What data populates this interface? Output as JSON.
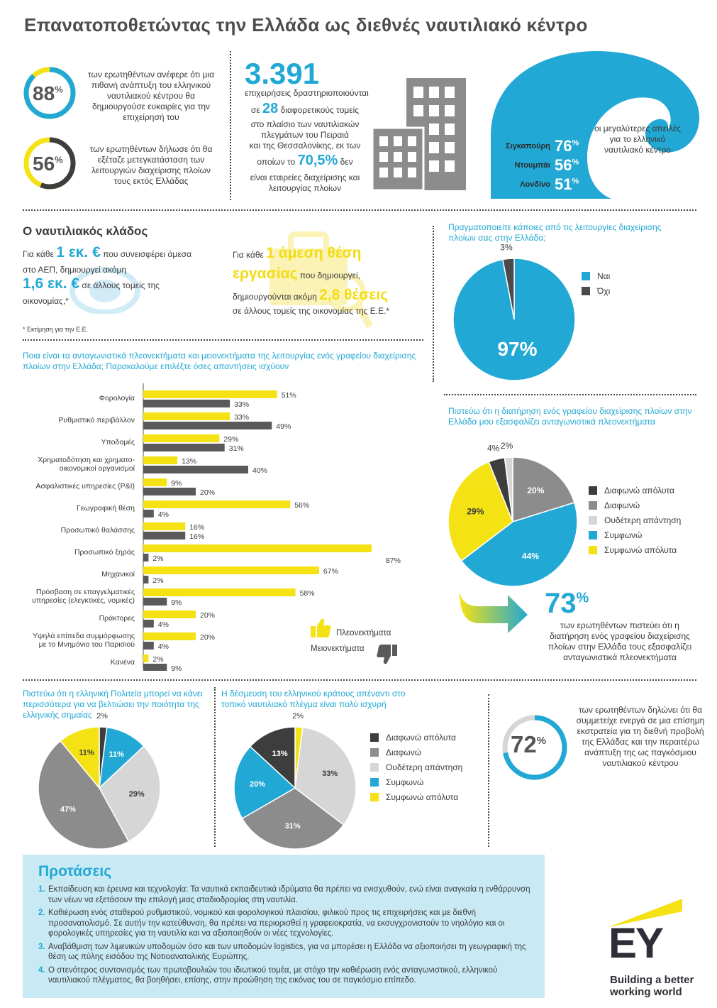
{
  "title": "Επανατοποθετώντας την Ελλάδα ως διεθνές ναυτιλιακό κέντρο",
  "stats": {
    "p88": {
      "value": "88",
      "pct": "%",
      "fraction": 0.88,
      "text": "των ερωτηθέντων ανέφερε ότι μια πιθανή ανάπτυξη του ελληνικού ναυτιλιακού κέντρου θα δημιουργούσε ευκαιρίες για την επιχείρησή του"
    },
    "p56": {
      "value": "56",
      "pct": "%",
      "fraction": 0.56,
      "text": "των ερωτηθέντων δήλωσε ότι θα εξέταζε μετεγκατάσταση των λειτουργιών διαχείρισης πλοίων τους εκτός Ελλάδας"
    },
    "companies": {
      "number": "3.391",
      "line1": "επιχειρήσεις δραστηριοποιούνται",
      "pre28": "σε",
      "n28": "28",
      "post28": "διαφορετικούς τομείς",
      "line3": "στο πλαίσιο των ναυτιλιακών",
      "line4": "πλεγμάτων του Πειραιά",
      "line5": "και της Θεσσαλονίκης, εκ των",
      "pre70": "οποίων το",
      "n70": "70,5%",
      "post70": "δεν",
      "line7": "είναι εταιρείες διαχείρισης και",
      "line8": "λειτουργίας πλοίων"
    },
    "threats": {
      "text": "οι μεγαλύτερες απειλές για το ελληνικό ναυτιλιακό κέντρο",
      "items": [
        {
          "name": "Σιγκαπούρη",
          "value": "76",
          "pct": "%"
        },
        {
          "name": "Ντουμπάι",
          "value": "56",
          "pct": "%"
        },
        {
          "name": "Λονδίνο",
          "value": "51",
          "pct": "%"
        }
      ]
    },
    "p72": {
      "value": "72",
      "pct": "%",
      "fraction": 0.72,
      "text": "των ερωτηθέντων δηλώνει ότι θα συμμετείχε ενεργά σε μια επίσημη εκστρατεία για τη διεθνή προβολή της Ελλάδας και την περαιτέρω ανάπτυξη της ως παγκόσμιου ναυτιλιακού κέντρου"
    },
    "p73": {
      "value": "73",
      "pct": "%",
      "text": "των ερωτηθέντων πιστεύει ότι η διατήρηση ενός γραφείου διαχείρισης πλοίων στην Ελλάδα τους εξασφαλίζει ανταγωνιστικά πλεονεκτήματα"
    }
  },
  "sector": {
    "heading": "Ο ναυτιλιακός κλάδος",
    "eur_pre": "Για κάθε",
    "eur_big": "1 εκ. €",
    "eur_post1": "που συνεισφέρει άμεσα",
    "eur_post2": "στο ΑΕΠ, δημιουργεί ακόμη",
    "eur_big2": "1,6 εκ. €",
    "eur_post3": "σε άλλους τομείς της",
    "eur_post4": "οικονομίας,*",
    "job_pre": "Για κάθε",
    "job_big1": "1 άμεση θέση",
    "job_big2": "εργασίας",
    "job_post1": "που δημιουργεί,",
    "job_post2": "δημιουργούνται ακόμη",
    "job_big3": "2,8 θέσεις",
    "job_post3": "σε άλλους τομείς της οικονομίας της Ε.Ε.*",
    "footnote": "* Εκτίμηση για την Ε.Ε."
  },
  "colors": {
    "cyan": "#22a8d4",
    "yellow": "#f5e214",
    "dark": "#3d3d3d",
    "mid": "#8c8c8c",
    "light": "#d6d6d6"
  },
  "chart_data": [
    {
      "id": "pie-operations",
      "type": "pie",
      "title": "Πραγματοποιείτε κάποιες από τις λειτουργίες διαχείρισης πλοίων σας στην Ελλάδα;",
      "slices": [
        {
          "name": "Ναι",
          "value": 97,
          "label": "97%",
          "color": "#22a8d4"
        },
        {
          "name": "Όχι",
          "value": 3,
          "label": "3%",
          "color": "#4a4a4a"
        }
      ]
    },
    {
      "id": "bar-advantages",
      "type": "bar",
      "title": "Ποια είναι τα ανταγωνιστικά πλεονεκτήματα και μειονεκτήματα της λειτουργίας ενός γραφείου διαχείρισης πλοίων στην Ελλάδα; Παρακαλούμε επιλέξτε όσες απαντήσεις ισχύουν",
      "categories": [
        "Φορολογία",
        "Ρυθμιστικό περιβάλλον",
        "Υποδομές",
        "Χρηματοδότηση και χρηματο-|οικονομικοί οργανισμοί",
        "Ασφαλιστικές υπηρεσίες (P&I)",
        "Γεωγραφική θέση",
        "Προσωπικό θαλάσσης",
        "Προσωπικό ξηράς",
        "Μηχανικοί",
        "Πρόσβαση σε επαγγελματικές|υπηρεσίες (ελεγκτικές, νομικές)",
        "Πράκτορες",
        "Υψηλά επίπεδα συμμόρφωσης|με το Μνημόνιο του Παρισιού",
        "Κανένα"
      ],
      "series": [
        {
          "name": "Πλεονεκτήματα",
          "color": "#f5e214",
          "values": [
            51,
            33,
            29,
            13,
            9,
            56,
            16,
            87,
            67,
            58,
            20,
            20,
            2
          ]
        },
        {
          "name": "Μειονεκτήματα",
          "color": "#5a5a5a",
          "values": [
            33,
            49,
            31,
            40,
            20,
            4,
            16,
            2,
            2,
            9,
            4,
            4,
            9
          ]
        }
      ],
      "xlim": [
        0,
        100
      ]
    },
    {
      "id": "pie-office",
      "type": "pie",
      "title": "Πιστεύω ότι η διατήρηση ενός γραφείου διαχείρισης πλοίων στην Ελλάδα μου εξασφαλίζει ανταγωνιστικά πλεονεκτήματα",
      "slices": [
        {
          "name": "Διαφωνώ",
          "value": 20,
          "label": "20%",
          "color": "#8c8c8c"
        },
        {
          "name": "Συμφωνώ",
          "value": 44,
          "label": "44%",
          "color": "#22a8d4"
        },
        {
          "name": "Συμφωνώ απόλυτα",
          "value": 29,
          "label": "29%",
          "color": "#f5e214"
        },
        {
          "name": "Διαφωνώ απόλυτα",
          "value": 4,
          "label": "4%",
          "color": "#3d3d3d"
        },
        {
          "name": "Ουδέτερη απάντηση",
          "value": 2,
          "label": "2%",
          "color": "#d6d6d6"
        }
      ],
      "legend": [
        "Διαφωνώ απόλυτα",
        "Διαφωνώ",
        "Ουδέτερη απάντηση",
        "Συμφωνώ",
        "Συμφωνώ απόλυτα"
      ]
    },
    {
      "id": "pie-flag",
      "type": "pie",
      "title": "Πιστεύω ότι η ελληνική Πολιτεία μπορεί να κάνει περισσότερα για να βελτιώσει την ποιότητα της ελληνικής σημαίας",
      "slices": [
        {
          "name": "Διαφωνώ απόλυτα",
          "value": 2,
          "label": "2%",
          "color": "#3d3d3d"
        },
        {
          "name": "Συμφωνώ",
          "value": 11,
          "label": "11%",
          "color": "#22a8d4"
        },
        {
          "name": "Ουδέτερη απάντηση",
          "value": 29,
          "label": "29%",
          "color": "#d6d6d6"
        },
        {
          "name": "Διαφωνώ",
          "value": 47,
          "label": "47%",
          "color": "#8c8c8c"
        },
        {
          "name": "Συμφωνώ απόλυτα",
          "value": 11,
          "label": "11%",
          "color": "#f5e214"
        }
      ]
    },
    {
      "id": "pie-commitment",
      "type": "pie",
      "title": "Η δέσμευση του ελληνικού κράτους απέναντι στο τοπικό ναυτιλιακό πλέγμα είναι πολύ ισχυρή",
      "slices": [
        {
          "name": "Συμφωνώ απόλυτα",
          "value": 2,
          "label": "2%",
          "color": "#f5e214"
        },
        {
          "name": "Ουδέτερη απάντηση",
          "value": 33,
          "label": "33%",
          "color": "#d6d6d6"
        },
        {
          "name": "Διαφωνώ",
          "value": 31,
          "label": "31%",
          "color": "#8c8c8c"
        },
        {
          "name": "Συμφωνώ",
          "value": 20,
          "label": "20%",
          "color": "#22a8d4"
        },
        {
          "name": "Διαφωνώ απόλυτα",
          "value": 13,
          "label": "13%",
          "color": "#3d3d3d"
        }
      ],
      "legend": [
        "Διαφωνώ απόλυτα",
        "Διαφωνώ",
        "Ουδέτερη απάντηση",
        "Συμφωνώ",
        "Συμφωνώ απόλυτα"
      ]
    }
  ],
  "proposals": {
    "heading": "Προτάσεις",
    "items": [
      {
        "num": "1.",
        "text": "Εκπαίδευση και έρευνα και τεχνολογία: Τα ναυτικά εκπαιδευτικά ιδρύματα θα πρέπει να ενισχυθούν, ενώ είναι αναγκαία η ενθάρρυνση των νέων να εξετάσουν την επιλογή μιας σταδιοδρομίας στη ναυτιλία."
      },
      {
        "num": "2.",
        "text": "Καθιέρωση ενός σταθερού ρυθμιστικού, νομικού και φορολογικού πλαισίου, φιλικού προς τις επιχειρήσεις και με διεθνή προσανατολισμό. Σε αυτήν την κατεύθυνση, θα πρέπει να περιορισθεί η γραφειοκρατία, να εκσυγχρονιστούν το νηολόγιο και οι φορολογικές υπηρεσίες για τη ναυτιλία και να αξιοποιηθούν οι νέες τεχνολογίες."
      },
      {
        "num": "3.",
        "text": "Αναβάθμιση των λιμενικών υποδομών όσο και των υποδομών logistics, για να μπορέσει η Ελλάδα να αξιοποιήσει τη γεωγραφική της θέση ως πύλης εισόδου της Νοτιοανατολικής Ευρώπης."
      },
      {
        "num": "4.",
        "text": "Ο στενότερος συντονισμός των πρωτοβουλιών του ιδιωτικού τομέα, με στόχο την καθιέρωση ενός ανταγωνιστικού, ελληνικού ναυτιλιακού πλέγματος, θα βοηθήσει, επίσης, στην προώθηση της εικόνας του σε παγκόσμιο επίπεδο."
      }
    ]
  },
  "brand": {
    "logo": "EY",
    "tagline1": "Building a better",
    "tagline2": "working world"
  }
}
